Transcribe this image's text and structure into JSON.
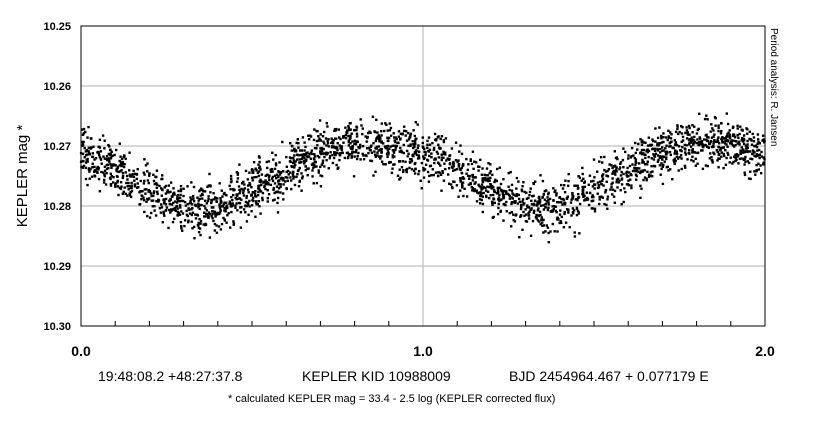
{
  "chart_data": {
    "type": "scatter",
    "title": "",
    "xlabel": "",
    "ylabel": "KEPLER mag *",
    "xlim": [
      0.0,
      2.0
    ],
    "ylim": [
      10.25,
      10.3
    ],
    "y_inverted": true,
    "grid": true,
    "x_ticks": [
      "0.0",
      "1.0",
      "2.0"
    ],
    "x_tick_values": [
      0.0,
      1.0,
      2.0
    ],
    "y_ticks": [
      "10.25",
      "10.26",
      "10.27",
      "10.28",
      "10.29",
      "10.30"
    ],
    "y_tick_values": [
      10.25,
      10.26,
      10.27,
      10.28,
      10.29,
      10.3
    ],
    "marker_color": "#000000",
    "phase": [
      0.0,
      0.05,
      0.1,
      0.15,
      0.2,
      0.25,
      0.3,
      0.35,
      0.4,
      0.45,
      0.5,
      0.55,
      0.6,
      0.65,
      0.7,
      0.75,
      0.8,
      0.85,
      0.9,
      0.95,
      1.0
    ],
    "mean_mag": [
      10.2715,
      10.2722,
      10.2738,
      10.2758,
      10.2775,
      10.279,
      10.2798,
      10.2802,
      10.28,
      10.279,
      10.2775,
      10.2758,
      10.2742,
      10.2725,
      10.2712,
      10.2703,
      10.2698,
      10.2697,
      10.27,
      10.2706,
      10.2712
    ],
    "scatter_half_width": 0.0045,
    "n_points": 2600,
    "side_note": "Period analysis: R. Jansen",
    "coords": "19:48:08.2 +48:27:37.8",
    "object": "KEPLER KID 10988009",
    "ephemeris": "BJD 2454964.467 + 0.077179 E",
    "footnote": "* calculated KEPLER mag = 33.4 - 2.5 log (KEPLER corrected flux)"
  }
}
